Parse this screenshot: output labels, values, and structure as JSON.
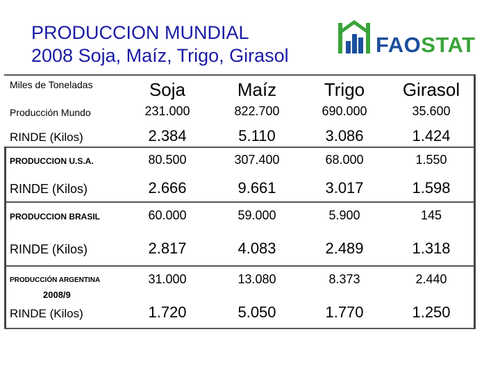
{
  "title": {
    "line1": "PRODUCCION MUNDIAL",
    "line2": "2008 Soja, Maíz, Trigo, Girasol"
  },
  "logo": {
    "text_part1": "FAO",
    "text_part2": "STAT"
  },
  "table": {
    "units_label": "Miles de Toneladas",
    "columns": [
      "Soja",
      "Maíz",
      "Trigo",
      "Girasol"
    ],
    "rows": [
      {
        "label": "Producción Mundo",
        "values": [
          "231.000",
          "822.700",
          "690.000",
          "35.600"
        ]
      },
      {
        "label": "RINDE (Kilos)",
        "values": [
          "2.384",
          "5.110",
          "3.086",
          "1.424"
        ]
      },
      {
        "label": "PRODUCCION U.S.A.",
        "values": [
          "80.500",
          "307.400",
          "68.000",
          "1.550"
        ]
      },
      {
        "label": "RINDE (Kilos)",
        "values": [
          "2.666",
          "9.661",
          "3.017",
          "1.598"
        ]
      },
      {
        "label": "PRODUCCION BRASIL",
        "values": [
          "60.000",
          "59.000",
          "5.900",
          "145"
        ]
      },
      {
        "label": "RINDE (Kilos)",
        "values": [
          "2.817",
          "4.083",
          "2.489",
          "1.318"
        ]
      },
      {
        "label": "PRODUCCIÓN ARGENTINA",
        "sublabel": "2008/9",
        "values": [
          "31.000",
          "13.080",
          "8.373",
          "2.440"
        ]
      },
      {
        "label": "RINDE (Kilos)",
        "values": [
          "1.720",
          "5.050",
          "1.770",
          "1.250"
        ]
      }
    ]
  },
  "colors": {
    "title": "#1a1aa6",
    "logo_blue": "#1b4f9c",
    "logo_green": "#3aa33a"
  }
}
